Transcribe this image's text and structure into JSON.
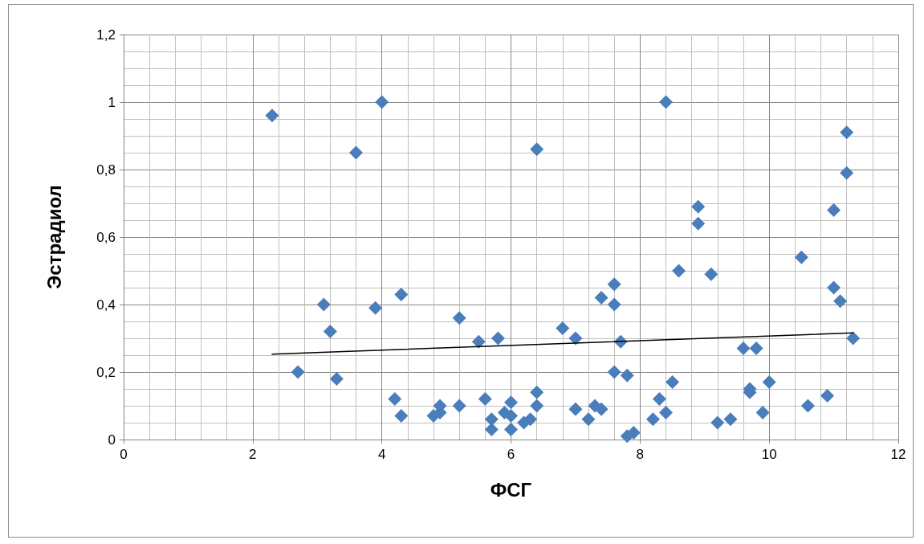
{
  "chart_data": {
    "type": "scatter",
    "xlabel": "ФСГ",
    "ylabel": "Эстрадиол",
    "xlim": [
      0,
      12
    ],
    "xticks": [
      0,
      2,
      4,
      6,
      8,
      10,
      12
    ],
    "ylim": [
      0,
      1.2
    ],
    "yticks": [
      0,
      {
        "value": 0.2,
        "label": "0,2"
      },
      {
        "value": 0.4,
        "label": "0,4"
      },
      {
        "value": 0.6,
        "label": "0,6"
      },
      {
        "value": 0.8,
        "label": "0,8"
      },
      1,
      {
        "value": 1.2,
        "label": "1,2"
      }
    ],
    "grid": true,
    "series": [
      {
        "color": "#4a7ebb",
        "marker": "diamond",
        "x": [
          2.3,
          2.7,
          3.1,
          3.2,
          3.3,
          3.6,
          3.9,
          4.0,
          4.2,
          4.3,
          4.3,
          4.8,
          4.9,
          4.9,
          5.2,
          5.2,
          5.5,
          5.6,
          5.7,
          5.7,
          5.8,
          5.9,
          6.0,
          6.0,
          6.0,
          6.2,
          6.3,
          6.4,
          6.4,
          6.4,
          6.8,
          7.0,
          7.0,
          7.2,
          7.3,
          7.4,
          7.4,
          7.6,
          7.6,
          7.6,
          7.7,
          7.8,
          7.8,
          7.9,
          8.2,
          8.3,
          8.4,
          8.4,
          8.5,
          8.6,
          8.9,
          8.9,
          9.1,
          9.2,
          9.4,
          9.6,
          9.7,
          9.7,
          9.8,
          9.9,
          10.0,
          10.5,
          10.6,
          10.9,
          11.0,
          11.0,
          11.1,
          11.2,
          11.2,
          11.3
        ],
        "values": [
          0.96,
          0.2,
          0.4,
          0.32,
          0.18,
          0.85,
          0.39,
          1.0,
          0.12,
          0.43,
          0.07,
          0.07,
          0.08,
          0.1,
          0.36,
          0.1,
          0.29,
          0.12,
          0.06,
          0.03,
          0.3,
          0.08,
          0.11,
          0.07,
          0.03,
          0.05,
          0.06,
          0.86,
          0.14,
          0.1,
          0.33,
          0.3,
          0.09,
          0.06,
          0.1,
          0.42,
          0.09,
          0.46,
          0.4,
          0.2,
          0.29,
          0.19,
          0.01,
          0.02,
          0.06,
          0.12,
          1.0,
          0.08,
          0.17,
          0.5,
          0.69,
          0.64,
          0.49,
          0.05,
          0.06,
          0.27,
          0.15,
          0.14,
          0.27,
          0.08,
          0.17,
          0.54,
          0.1,
          0.13,
          0.68,
          0.45,
          0.41,
          0.91,
          0.79,
          0.3
        ]
      },
      {
        "type": "line",
        "color": "#000000",
        "marker": "none",
        "line_style": "solid",
        "x": [
          2.3,
          11.3
        ],
        "values": [
          0.253,
          0.316
        ]
      }
    ]
  }
}
